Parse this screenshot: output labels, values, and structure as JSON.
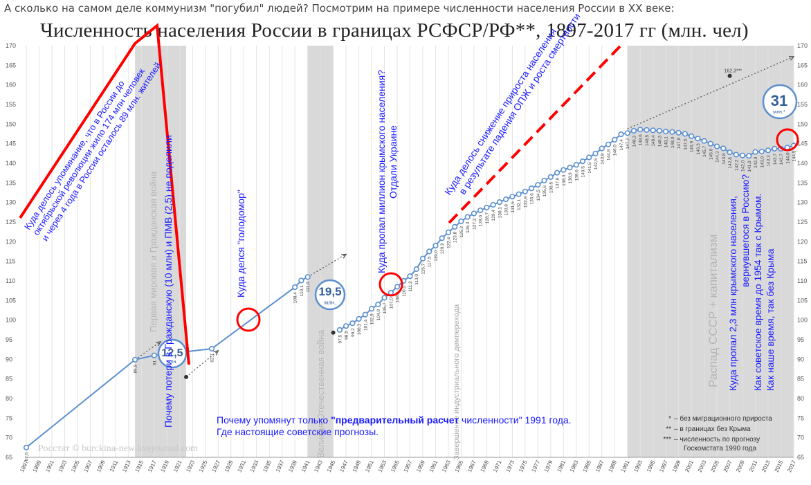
{
  "caption": "А сколько на самом деле коммунизм \"погубил\" людей? Посмотрим на примере численности населения России в XX веке:",
  "title": "Численность населения России в границах РСФСР/РФ**, 1897-2017 гг (млн. чел)",
  "watermark": "Росстат © burckina-new.livejournal.com",
  "note_line1_pre": "Почему упомянут только  ",
  "note_line1_bold": "\"предварительный расчет",
  "note_line1_post": " численности\" 1991 года.",
  "note_line2": "Где настоящие советские прогнозы.",
  "bubbles": [
    {
      "value": "12,5",
      "unit": "млн."
    },
    {
      "value": "19,5",
      "unit": "млн."
    },
    {
      "value": "31",
      "unit": "млн.*"
    }
  ],
  "legend": [
    {
      "marker": "*",
      "label": "– без миграционного прироста"
    },
    {
      "marker": "**",
      "label": "– в границах без Крыма"
    },
    {
      "marker": "***",
      "label": "– численность по прогнозу"
    },
    {
      "marker": "",
      "label": "Госкомстата 1990 года"
    }
  ],
  "bands": [
    {
      "label": "Первая мировая и Гражданская война"
    },
    {
      "label": "Великая Отечественная война"
    },
    {
      "label": "Распад СССР + капитализм"
    }
  ],
  "demographic_label": "Завершение индустриального демперехода",
  "annotations": {
    "a1": [
      "Куда делось упоминание, что в России до",
      "октябрьской революции жило 174 млн человек",
      "и через 4 года в России осталось 89 млн. жителей"
    ],
    "a2": [
      "Почему потери в Гражданскую (10 млн) и ПМВ (2,5) не поделили"
    ],
    "a3": [
      "Куда делся \"голодомор\""
    ],
    "a4": [
      "Куда пропал миллион крымского населения?",
      "Отдали Украине"
    ],
    "a5": [
      "Куда делось снижение прироста населения",
      "в результате падения ОПЖ и роста смертности"
    ],
    "a6": [
      "Куда пропал 2,3 млн крымского населения,",
      "вернувшегося в Россию?",
      "Как советское время до 1954 так с Крымом.",
      "Как наше время, так без Крыма"
    ]
  },
  "colors": {
    "line": "#5b8fcf",
    "marker_fill": "#ffffff",
    "band": "#d5d5d5",
    "annotation_blue": "#1a1aff",
    "annotation_red": "#ff0000",
    "grid": "#e3e3e3"
  },
  "chart_data": {
    "type": "line",
    "title": "Численность населения России в границах РСФСР/РФ**, 1897-2017 гг (млн. чел)",
    "xlim": [
      1897,
      2017
    ],
    "ylim": [
      65,
      170
    ],
    "y_ticks": [
      65,
      70,
      75,
      80,
      85,
      90,
      95,
      100,
      105,
      110,
      115,
      120,
      125,
      130,
      135,
      140,
      145,
      150,
      155,
      160,
      165,
      170
    ],
    "x_tick_labels": [
      "1897",
      "1899",
      "1901",
      "1903",
      "1905",
      "1907",
      "1909",
      "1911",
      "1913",
      "1915",
      "1917",
      "1919",
      "1921",
      "1923",
      "1925",
      "1927",
      "1929",
      "1931",
      "1933",
      "1935",
      "1937",
      "1939",
      "1941",
      "1943",
      "1945",
      "1947",
      "1949",
      "1951",
      "1953",
      "1955",
      "1957",
      "1959",
      "1961",
      "1963",
      "1965",
      "1967",
      "1969",
      "1971",
      "1973",
      "1975",
      "1977",
      "1979",
      "1981",
      "1983",
      "1985",
      "1987",
      "1989",
      "1991",
      "1993",
      "1995",
      "1997",
      "1999",
      "2001",
      "2003",
      "2005",
      "2007",
      "2009",
      "2011",
      "2013",
      "2015",
      "2017"
    ],
    "grid": "vertical",
    "legend_position": "bottom-right",
    "series": [
      {
        "points": [
          [
            1897,
            67.5
          ],
          [
            1914,
            89.9
          ],
          [
            1917,
            91.0
          ],
          [
            1926,
            92.7
          ],
          [
            1939,
            108.4
          ],
          [
            1940,
            110.1
          ],
          [
            1941,
            111.0
          ]
        ]
      },
      {
        "points": [
          [
            1946,
            97.5
          ],
          [
            1947,
            98.5
          ],
          [
            1948,
            99.2
          ],
          [
            1949,
            100.3
          ],
          [
            1950,
            101.4
          ],
          [
            1951,
            102.9
          ],
          [
            1952,
            104.0
          ],
          [
            1953,
            105.7
          ],
          [
            1954,
            107.0
          ],
          [
            1955,
            108.5
          ],
          [
            1956,
            110.0
          ],
          [
            1957,
            111.2
          ],
          [
            1958,
            113.0
          ],
          [
            1959,
            115.7
          ],
          [
            1960,
            117.5
          ],
          [
            1961,
            119.0
          ],
          [
            1962,
            120.9
          ],
          [
            1963,
            122.4
          ],
          [
            1964,
            123.8
          ],
          [
            1965,
            125.2
          ],
          [
            1966,
            126.3
          ],
          [
            1967,
            127.2
          ],
          [
            1968,
            128.0
          ],
          [
            1969,
            128.7
          ],
          [
            1970,
            129.4
          ],
          [
            1971,
            130.1
          ],
          [
            1972,
            130.8
          ],
          [
            1973,
            131.5
          ],
          [
            1974,
            132.1
          ],
          [
            1975,
            132.8
          ],
          [
            1976,
            133.6
          ],
          [
            1977,
            134.5
          ],
          [
            1978,
            135.6
          ],
          [
            1979,
            136.5
          ],
          [
            1980,
            137.6
          ],
          [
            1981,
            138.3
          ],
          [
            1982,
            138.9
          ],
          [
            1983,
            139.6
          ],
          [
            1984,
            140.5
          ],
          [
            1985,
            141.5
          ],
          [
            1986,
            142.5
          ],
          [
            1987,
            143.8
          ],
          [
            1988,
            144.8
          ],
          [
            1989,
            146.0
          ],
          [
            1990,
            147.4
          ],
          [
            1991,
            147.7
          ],
          [
            1992,
            148.3
          ],
          [
            1993,
            148.6
          ],
          [
            1994,
            148.5
          ],
          [
            1995,
            148.4
          ],
          [
            1996,
            148.3
          ],
          [
            1997,
            148.1
          ],
          [
            1998,
            148.0
          ],
          [
            1999,
            147.8
          ],
          [
            2000,
            147.5
          ],
          [
            2001,
            146.9
          ],
          [
            2002,
            146.3
          ],
          [
            2003,
            145.7
          ],
          [
            2004,
            145.0
          ],
          [
            2005,
            144.3
          ],
          [
            2006,
            143.8
          ],
          [
            2007,
            142.8
          ],
          [
            2008,
            142.2
          ],
          [
            2009,
            142.0
          ],
          [
            2010,
            141.9
          ],
          [
            2011,
            142.9
          ],
          [
            2012,
            143.0
          ],
          [
            2013,
            143.3
          ],
          [
            2014,
            143.7
          ],
          [
            2015,
            143.7
          ],
          [
            2016,
            144.0
          ],
          [
            2017,
            144.5
          ]
        ]
      }
    ],
    "point_labels": [
      {
        "x": 1897,
        "y": 67.5,
        "text": "67,5"
      },
      {
        "x": 1914,
        "y": 89.9,
        "text": "89,9"
      },
      {
        "x": 1917,
        "y": 91.0,
        "text": "91"
      },
      {
        "x": 1926,
        "y": 92.7,
        "text": "92,7"
      },
      {
        "x": 1939,
        "y": 108.4,
        "text": "108,4"
      },
      {
        "x": 1940,
        "y": 110.1,
        "text": "110,1"
      },
      {
        "x": 1941,
        "y": 111.0,
        "text": "111,0"
      },
      {
        "x": 1946,
        "y": 97.5,
        "text": "97,5"
      },
      {
        "x": 1947,
        "y": 98.5,
        "text": "98,5"
      },
      {
        "x": 1948,
        "y": 99.2,
        "text": "99,2"
      },
      {
        "x": 1949,
        "y": 100.3,
        "text": "100,3"
      },
      {
        "x": 1950,
        "y": 101.4,
        "text": "101,4"
      },
      {
        "x": 1951,
        "y": 102.9,
        "text": "102,9"
      },
      {
        "x": 1952,
        "y": 104.0,
        "text": "104,0"
      },
      {
        "x": 1953,
        "y": 105.7,
        "text": "105,7"
      },
      {
        "x": 1954,
        "y": 107.0,
        "text": "107,0"
      },
      {
        "x": 1955,
        "y": 108.5,
        "text": "108,5"
      },
      {
        "x": 1956,
        "y": 110.0,
        "text": "110,0"
      },
      {
        "x": 1957,
        "y": 111.2,
        "text": "111,2"
      },
      {
        "x": 1958,
        "y": 113.0,
        "text": "113,0"
      },
      {
        "x": 1959,
        "y": 115.7,
        "text": "115,7"
      },
      {
        "x": 1960,
        "y": 117.5,
        "text": "117,5"
      },
      {
        "x": 1961,
        "y": 119.0,
        "text": "119,0"
      },
      {
        "x": 1962,
        "y": 120.9,
        "text": "120,9"
      },
      {
        "x": 1963,
        "y": 122.4,
        "text": "122,4"
      },
      {
        "x": 1964,
        "y": 123.8,
        "text": "123,8"
      },
      {
        "x": 1965,
        "y": 125.2,
        "text": "125,2"
      },
      {
        "x": 1966,
        "y": 126.3,
        "text": "126,3"
      },
      {
        "x": 1967,
        "y": 127.2,
        "text": "127,2"
      },
      {
        "x": 1968,
        "y": 128.0,
        "text": "128,0"
      },
      {
        "x": 1969,
        "y": 128.7,
        "text": "128,7"
      },
      {
        "x": 1970,
        "y": 129.4,
        "text": "129,4"
      },
      {
        "x": 1971,
        "y": 130.1,
        "text": "130,1"
      },
      {
        "x": 1972,
        "y": 130.8,
        "text": "130,8"
      },
      {
        "x": 1973,
        "y": 131.5,
        "text": "131,5"
      },
      {
        "x": 1974,
        "y": 132.1,
        "text": "132,1"
      },
      {
        "x": 1975,
        "y": 132.8,
        "text": "132,8"
      },
      {
        "x": 1976,
        "y": 133.6,
        "text": "133,6"
      },
      {
        "x": 1977,
        "y": 134.5,
        "text": "134,5"
      },
      {
        "x": 1978,
        "y": 135.6,
        "text": "135,6"
      },
      {
        "x": 1979,
        "y": 136.5,
        "text": "136,5"
      },
      {
        "x": 1980,
        "y": 137.6,
        "text": "137,6"
      },
      {
        "x": 1981,
        "y": 138.3,
        "text": "138,3"
      },
      {
        "x": 1982,
        "y": 138.9,
        "text": "138,9"
      },
      {
        "x": 1983,
        "y": 139.6,
        "text": "139,6"
      },
      {
        "x": 1984,
        "y": 140.5,
        "text": "140,5"
      },
      {
        "x": 1985,
        "y": 141.5,
        "text": "141,5"
      },
      {
        "x": 1986,
        "y": 142.5,
        "text": "142,5"
      },
      {
        "x": 1987,
        "y": 143.8,
        "text": "143,8"
      },
      {
        "x": 1988,
        "y": 144.8,
        "text": "144,8"
      },
      {
        "x": 1989,
        "y": 146.0,
        "text": "146,0"
      },
      {
        "x": 1990,
        "y": 147.4,
        "text": "147,4"
      },
      {
        "x": 1991,
        "y": 147.7,
        "text": "147,7"
      },
      {
        "x": 1992,
        "y": 148.3,
        "text": "148,3"
      },
      {
        "x": 1993,
        "y": 148.6,
        "text": "148,6"
      },
      {
        "x": 1994,
        "y": 148.5,
        "text": "148,5"
      },
      {
        "x": 1995,
        "y": 148.4,
        "text": "148,4"
      },
      {
        "x": 1996,
        "y": 148.3,
        "text": "148,3"
      },
      {
        "x": 1997,
        "y": 148.1,
        "text": "148,1"
      },
      {
        "x": 1998,
        "y": 148.0,
        "text": "148,0"
      },
      {
        "x": 1999,
        "y": 147.8,
        "text": "147,8"
      },
      {
        "x": 2000,
        "y": 147.5,
        "text": "147,5"
      },
      {
        "x": 2001,
        "y": 146.9,
        "text": "146,9"
      },
      {
        "x": 2002,
        "y": 146.3,
        "text": "146,3"
      },
      {
        "x": 2003,
        "y": 145.7,
        "text": "145,7"
      },
      {
        "x": 2004,
        "y": 145.0,
        "text": "145,0"
      },
      {
        "x": 2005,
        "y": 144.3,
        "text": "144,3"
      },
      {
        "x": 2006,
        "y": 143.8,
        "text": "143,8"
      },
      {
        "x": 2007,
        "y": 142.8,
        "text": "142,8"
      },
      {
        "x": 2008,
        "y": 142.2,
        "text": "142,2"
      },
      {
        "x": 2009,
        "y": 142.0,
        "text": "142,0"
      },
      {
        "x": 2010,
        "y": 141.9,
        "text": "141,9"
      },
      {
        "x": 2011,
        "y": 142.9,
        "text": "142,9"
      },
      {
        "x": 2012,
        "y": 143.0,
        "text": "143,0"
      },
      {
        "x": 2013,
        "y": 143.3,
        "text": "143,3"
      },
      {
        "x": 2014,
        "y": 143.7,
        "text": "143,7"
      },
      {
        "x": 2015,
        "y": 143.7,
        "text": "143,7"
      },
      {
        "x": 2016,
        "y": 144.0,
        "text": "144,0"
      },
      {
        "x": 2017,
        "y": 144.5,
        "text": "144,5"
      },
      {
        "x": 2007,
        "y": 162.3,
        "text": "162,3***"
      }
    ],
    "dotted_projections": [
      {
        "from": [
          1914,
          89.9
        ],
        "to": [
          1918,
          94.5
        ]
      },
      {
        "from": [
          1922,
          85.5
        ],
        "to": [
          1927,
          92.2
        ]
      },
      {
        "from": [
          1941,
          111.0
        ],
        "to": [
          1947,
          116.8
        ]
      },
      {
        "from": [
          1991,
          148.8
        ],
        "to": [
          2017,
          167.2
        ]
      }
    ],
    "dark_points": [
      [
        1922,
        85.5
      ],
      [
        1945,
        96.8
      ]
    ],
    "forecast_point": [
      2007,
      162.3
    ],
    "shaded_bands": [
      [
        1914,
        1922
      ],
      [
        1941,
        1945
      ],
      [
        1991,
        2017
      ]
    ]
  }
}
